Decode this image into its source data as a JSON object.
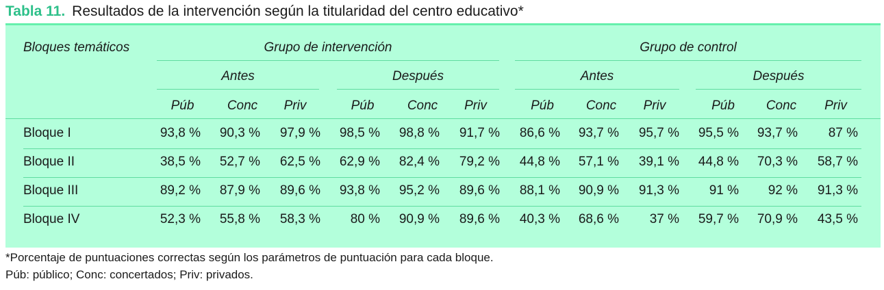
{
  "title": {
    "label": "Tabla 11.",
    "text": "Resultados de la intervención según la titularidad del centro educativo*"
  },
  "table": {
    "stub_header": "Bloques temáticos",
    "groups": [
      "Grupo de intervención",
      "Grupo de control"
    ],
    "periods": [
      "Antes",
      "Después",
      "Antes",
      "Después"
    ],
    "subcolumns": [
      "Púb",
      "Conc",
      "Priv",
      "Púb",
      "Conc",
      "Priv",
      "Púb",
      "Conc",
      "Priv",
      "Púb",
      "Conc",
      "Priv"
    ],
    "rows": [
      {
        "label": "Bloque I",
        "values": [
          "93,8 %",
          "90,3 %",
          "97,9 %",
          "98,5 %",
          "98,8 %",
          "91,7 %",
          "86,6 %",
          "93,7 %",
          "95,7 %",
          "95,5 %",
          "93,7 %",
          "87 %"
        ]
      },
      {
        "label": "Bloque II",
        "values": [
          "38,5 %",
          "52,7 %",
          "62,5 %",
          "62,9 %",
          "82,4 %",
          "79,2 %",
          "44,8 %",
          "57,1 %",
          "39,1 %",
          "44,8 %",
          "70,3 %",
          "58,7 %"
        ]
      },
      {
        "label": "Bloque III",
        "values": [
          "89,2 %",
          "87,9 %",
          "89,6 %",
          "93,8 %",
          "95,2 %",
          "89,6 %",
          "88,1 %",
          "90,9 %",
          "91,3 %",
          "91 %",
          "92 %",
          "91,3 %"
        ]
      },
      {
        "label": "Bloque IV",
        "values": [
          "52,3 %",
          "55,8 %",
          "58,3 %",
          "80 %",
          "90,9 %",
          "89,6 %",
          "40,3 %",
          "68,6 %",
          "37 %",
          "59,7 %",
          "70,9 %",
          "43,5 %"
        ]
      }
    ]
  },
  "footnotes": [
    "*Porcentaje de puntuaciones correctas según los parámetros de puntuación para cada bloque.",
    "Púb: público; Conc: concertados; Priv: privados."
  ],
  "colors": {
    "panel_background": "#b3ffdb",
    "rule_lines": "#5fdca0",
    "title_label": "#2ec08a"
  }
}
